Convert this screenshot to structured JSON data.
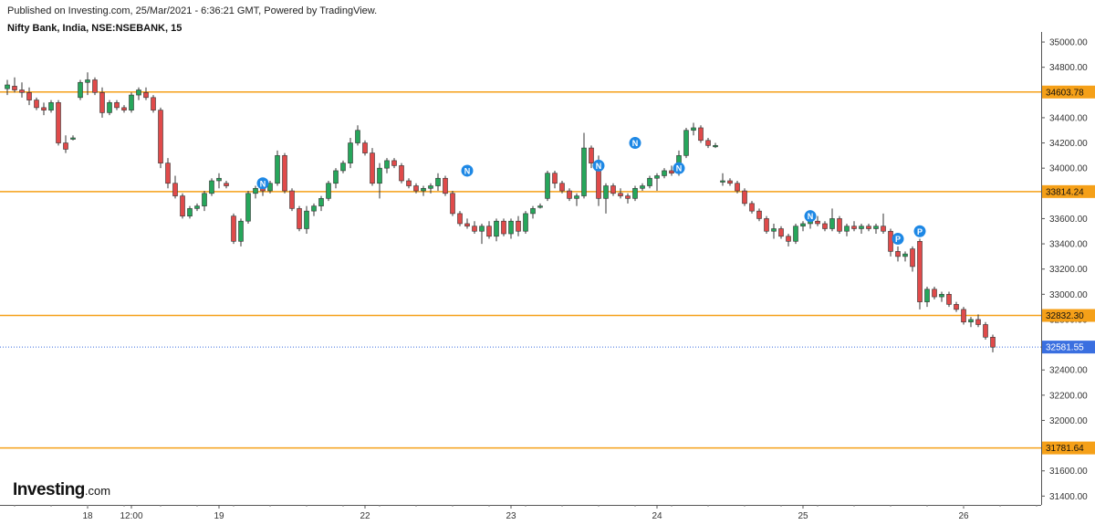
{
  "header": {
    "published": "Published on Investing.com, 25/Mar/2021 - 6:36:21 GMT, Powered by TradingView.",
    "symbol": "Nifty Bank, India, NSE:NSEBANK, 15"
  },
  "brand": {
    "main": "Investing",
    "suffix": ".com"
  },
  "colors": {
    "up": "#26a65b",
    "down": "#e04a4a",
    "level": "#f5a018",
    "last_price": "#3a6fe0",
    "marker": "#1e88e5"
  },
  "chart_data": {
    "type": "candlestick",
    "ylim": [
      31330,
      35080
    ],
    "y_ticks": [
      31400,
      31600,
      31800,
      32000,
      32200,
      32400,
      32600,
      32800,
      33000,
      33200,
      33400,
      33600,
      33800,
      34000,
      34200,
      34400,
      34600,
      34800,
      35000
    ],
    "y_tick_labels": [
      "31400.00",
      "31600.00",
      "31800.00",
      "32000.00",
      "32200.00",
      "32400.00",
      "32600.00",
      "32800.00",
      "33000.00",
      "33200.00",
      "33400.00",
      "33600.00",
      "33800.00",
      "34000.00",
      "34200.00",
      "34400.00",
      "34600.00",
      "34800.00",
      "35000.00"
    ],
    "x_tick_labels": [
      {
        "label": "18",
        "bar": 11
      },
      {
        "label": "12:00",
        "bar": 17
      },
      {
        "label": "19",
        "bar": 29
      },
      {
        "label": "22",
        "bar": 49
      },
      {
        "label": "23",
        "bar": 69
      },
      {
        "label": "24",
        "bar": 89
      },
      {
        "label": "25",
        "bar": 109
      },
      {
        "label": "26",
        "bar": 131
      }
    ],
    "levels": [
      {
        "value": 34603.78,
        "label": "34603.78"
      },
      {
        "value": 33814.24,
        "label": "33814.24"
      },
      {
        "value": 32832.3,
        "label": "32832.30"
      },
      {
        "value": 31781.64,
        "label": "31781.64"
      }
    ],
    "last_price": {
      "value": 32581.55,
      "label": "32581.55"
    },
    "candles": [
      [
        34630,
        34700,
        34580,
        34660
      ],
      [
        34650,
        34720,
        34600,
        34620
      ],
      [
        34620,
        34680,
        34560,
        34600
      ],
      [
        34600,
        34640,
        34500,
        34540
      ],
      [
        34540,
        34560,
        34460,
        34480
      ],
      [
        34480,
        34520,
        34420,
        34460
      ],
      [
        34460,
        34540,
        34440,
        34520
      ],
      [
        34520,
        34540,
        34180,
        34200
      ],
      [
        34200,
        34260,
        34120,
        34150
      ],
      [
        34240,
        34260,
        34220,
        34240
      ],
      [
        34560,
        34700,
        34540,
        34680
      ],
      [
        34680,
        34760,
        34580,
        34700
      ],
      [
        34700,
        34720,
        34580,
        34600
      ],
      [
        34600,
        34640,
        34400,
        34440
      ],
      [
        34440,
        34540,
        34420,
        34520
      ],
      [
        34520,
        34540,
        34460,
        34480
      ],
      [
        34480,
        34500,
        34440,
        34460
      ],
      [
        34460,
        34600,
        34440,
        34580
      ],
      [
        34580,
        34640,
        34540,
        34620
      ],
      [
        34600,
        34640,
        34540,
        34560
      ],
      [
        34560,
        34580,
        34440,
        34460
      ],
      [
        34460,
        34480,
        34000,
        34040
      ],
      [
        34040,
        34080,
        33840,
        33880
      ],
      [
        33880,
        33940,
        33760,
        33780
      ],
      [
        33780,
        33800,
        33600,
        33620
      ],
      [
        33620,
        33700,
        33600,
        33680
      ],
      [
        33680,
        33720,
        33660,
        33700
      ],
      [
        33700,
        33820,
        33660,
        33800
      ],
      [
        33800,
        33920,
        33780,
        33900
      ],
      [
        33900,
        33960,
        33840,
        33920
      ],
      [
        33880,
        33900,
        33840,
        33860
      ],
      [
        33620,
        33640,
        33400,
        33420
      ],
      [
        33420,
        33600,
        33380,
        33580
      ],
      [
        33580,
        33820,
        33560,
        33800
      ],
      [
        33800,
        33860,
        33760,
        33840
      ],
      [
        33840,
        33880,
        33780,
        33820
      ],
      [
        33820,
        33900,
        33800,
        33880
      ],
      [
        33880,
        34140,
        33860,
        34100
      ],
      [
        34100,
        34120,
        33800,
        33820
      ],
      [
        33820,
        33840,
        33660,
        33680
      ],
      [
        33680,
        33700,
        33500,
        33520
      ],
      [
        33520,
        33700,
        33480,
        33660
      ],
      [
        33660,
        33720,
        33620,
        33700
      ],
      [
        33700,
        33780,
        33660,
        33760
      ],
      [
        33760,
        33900,
        33740,
        33880
      ],
      [
        33880,
        34000,
        33840,
        33980
      ],
      [
        33980,
        34060,
        33960,
        34040
      ],
      [
        34040,
        34240,
        34000,
        34200
      ],
      [
        34200,
        34340,
        34180,
        34300
      ],
      [
        34200,
        34220,
        34100,
        34120
      ],
      [
        34120,
        34160,
        33860,
        33880
      ],
      [
        33880,
        34040,
        33760,
        34000
      ],
      [
        34000,
        34080,
        33960,
        34060
      ],
      [
        34060,
        34080,
        34000,
        34020
      ],
      [
        34020,
        34040,
        33880,
        33900
      ],
      [
        33900,
        33920,
        33840,
        33860
      ],
      [
        33860,
        33880,
        33800,
        33820
      ],
      [
        33820,
        33860,
        33780,
        33840
      ],
      [
        33840,
        33880,
        33800,
        33860
      ],
      [
        33860,
        33960,
        33820,
        33920
      ],
      [
        33920,
        33940,
        33780,
        33800
      ],
      [
        33800,
        33820,
        33620,
        33640
      ],
      [
        33640,
        33660,
        33540,
        33560
      ],
      [
        33560,
        33600,
        33520,
        33540
      ],
      [
        33540,
        33580,
        33480,
        33500
      ],
      [
        33500,
        33560,
        33400,
        33540
      ],
      [
        33540,
        33580,
        33440,
        33460
      ],
      [
        33460,
        33600,
        33420,
        33580
      ],
      [
        33580,
        33600,
        33460,
        33480
      ],
      [
        33480,
        33600,
        33440,
        33580
      ],
      [
        33580,
        33620,
        33460,
        33500
      ],
      [
        33500,
        33660,
        33480,
        33640
      ],
      [
        33640,
        33700,
        33600,
        33680
      ],
      [
        33700,
        33720,
        33680,
        33700
      ],
      [
        33760,
        33980,
        33740,
        33960
      ],
      [
        33960,
        33980,
        33840,
        33880
      ],
      [
        33880,
        33900,
        33800,
        33820
      ],
      [
        33820,
        33840,
        33740,
        33760
      ],
      [
        33760,
        33800,
        33700,
        33780
      ],
      [
        33780,
        34280,
        33760,
        34160
      ],
      [
        34160,
        34180,
        34000,
        34040
      ],
      [
        34040,
        34100,
        33700,
        33760
      ],
      [
        33760,
        33880,
        33640,
        33860
      ],
      [
        33860,
        33880,
        33780,
        33800
      ],
      [
        33800,
        33840,
        33760,
        33780
      ],
      [
        33780,
        33800,
        33720,
        33760
      ],
      [
        33760,
        33860,
        33740,
        33840
      ],
      [
        33840,
        33880,
        33820,
        33860
      ],
      [
        33860,
        33940,
        33840,
        33920
      ],
      [
        33920,
        33960,
        33820,
        33940
      ],
      [
        33940,
        34000,
        33920,
        33980
      ],
      [
        33980,
        34020,
        33940,
        33960
      ],
      [
        33960,
        34140,
        33940,
        34100
      ],
      [
        34100,
        34320,
        34080,
        34300
      ],
      [
        34300,
        34360,
        34260,
        34320
      ],
      [
        34320,
        34340,
        34200,
        34220
      ],
      [
        34220,
        34240,
        34160,
        34180
      ],
      [
        34180,
        34200,
        34160,
        34180
      ],
      [
        33900,
        33960,
        33860,
        33900
      ],
      [
        33900,
        33920,
        33860,
        33880
      ],
      [
        33880,
        33900,
        33800,
        33820
      ],
      [
        33820,
        33840,
        33700,
        33720
      ],
      [
        33720,
        33740,
        33640,
        33660
      ],
      [
        33660,
        33680,
        33580,
        33600
      ],
      [
        33600,
        33620,
        33480,
        33500
      ],
      [
        33500,
        33560,
        33440,
        33520
      ],
      [
        33520,
        33540,
        33440,
        33460
      ],
      [
        33460,
        33480,
        33380,
        33420
      ],
      [
        33420,
        33560,
        33400,
        33540
      ],
      [
        33540,
        33580,
        33500,
        33560
      ],
      [
        33560,
        33600,
        33520,
        33580
      ],
      [
        33580,
        33620,
        33540,
        33560
      ],
      [
        33560,
        33580,
        33500,
        33520
      ],
      [
        33520,
        33680,
        33500,
        33600
      ],
      [
        33600,
        33620,
        33480,
        33500
      ],
      [
        33500,
        33560,
        33460,
        33540
      ],
      [
        33540,
        33580,
        33500,
        33520
      ],
      [
        33520,
        33560,
        33480,
        33540
      ],
      [
        33540,
        33560,
        33500,
        33520
      ],
      [
        33520,
        33560,
        33480,
        33540
      ],
      [
        33540,
        33640,
        33480,
        33500
      ],
      [
        33500,
        33520,
        33300,
        33340
      ],
      [
        33340,
        33380,
        33260,
        33300
      ],
      [
        33300,
        33340,
        33260,
        33320
      ],
      [
        33360,
        33380,
        33180,
        33220
      ],
      [
        33420,
        33440,
        32880,
        32940
      ],
      [
        32940,
        33060,
        32900,
        33040
      ],
      [
        33040,
        33060,
        32960,
        32980
      ],
      [
        32980,
        33020,
        32940,
        33000
      ],
      [
        33000,
        33020,
        32900,
        32920
      ],
      [
        32920,
        32940,
        32860,
        32880
      ],
      [
        32880,
        32900,
        32760,
        32780
      ],
      [
        32780,
        32820,
        32740,
        32800
      ],
      [
        32800,
        32840,
        32740,
        32760
      ],
      [
        32760,
        32780,
        32640,
        32660
      ],
      [
        32660,
        32680,
        32540,
        32581
      ]
    ],
    "markers": [
      {
        "bar": 35,
        "price": 33880,
        "label": "N"
      },
      {
        "bar": 63,
        "price": 33980,
        "label": "N"
      },
      {
        "bar": 81,
        "price": 34020,
        "label": "N"
      },
      {
        "bar": 86,
        "price": 34200,
        "label": "N"
      },
      {
        "bar": 92,
        "price": 34000,
        "label": "N"
      },
      {
        "bar": 110,
        "price": 33620,
        "label": "N"
      },
      {
        "bar": 122,
        "price": 33440,
        "label": "P"
      },
      {
        "bar": 125,
        "price": 33500,
        "label": "P"
      }
    ]
  }
}
